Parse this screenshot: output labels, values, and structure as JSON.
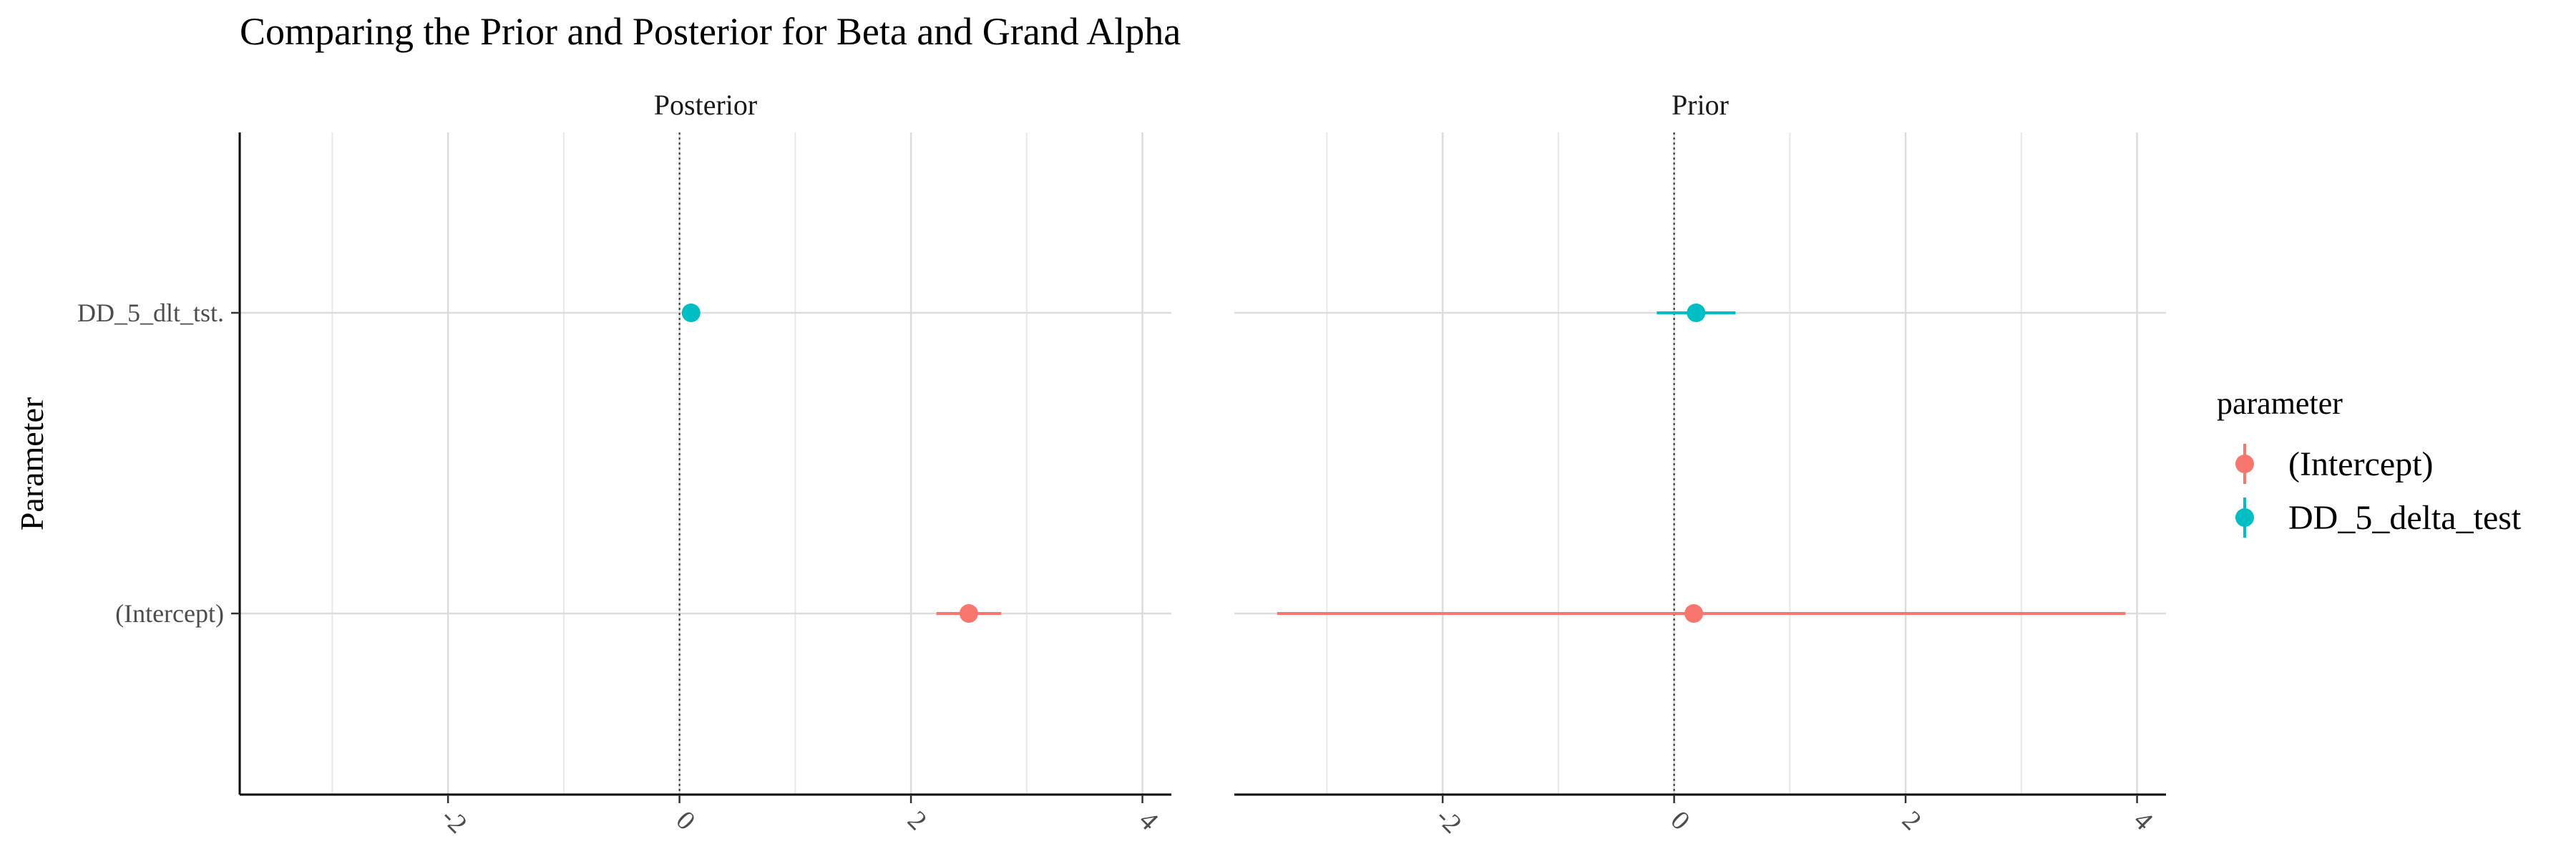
{
  "chart_data": {
    "type": "scatter",
    "title": "Comparing the Prior and Posterior for Beta and Grand Alpha",
    "ylabel": "Parameter",
    "xlabel": "",
    "x_ticks": [
      -2,
      0,
      2,
      4
    ],
    "xlim": [
      -3.8,
      4.25
    ],
    "reference_line_x": 0,
    "categories": [
      "(Intercept)",
      "DD_5_delta_test"
    ],
    "y_tick_labels": [
      "(Intercept)",
      "DD_5_dlt_tst."
    ],
    "legend": {
      "title": "parameter",
      "position": "right",
      "entries": [
        "(Intercept)",
        "DD_5_delta_test"
      ]
    },
    "colors": {
      "(Intercept)": "#F8766D",
      "DD_5_delta_test": "#00BFC4"
    },
    "grid": true,
    "panels": [
      {
        "name": "Posterior",
        "points": [
          {
            "parameter": "(Intercept)",
            "estimate": 2.5,
            "lower": 2.22,
            "upper": 2.78
          },
          {
            "parameter": "DD_5_delta_test",
            "estimate": 0.1,
            "lower": 0.06,
            "upper": 0.14
          }
        ]
      },
      {
        "name": "Prior",
        "points": [
          {
            "parameter": "(Intercept)",
            "estimate": 0.17,
            "lower": -3.43,
            "upper": 3.9
          },
          {
            "parameter": "DD_5_delta_test",
            "estimate": 0.19,
            "lower": -0.15,
            "upper": 0.53
          }
        ]
      }
    ]
  }
}
